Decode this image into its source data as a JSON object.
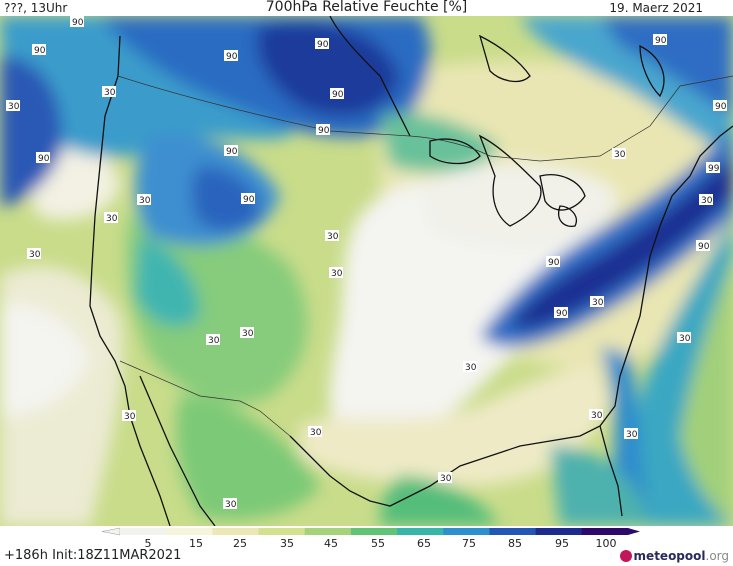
{
  "header": {
    "left": "???, 13Uhr",
    "title": "700hPa Relative Feuchte [%]",
    "date": "19. Maerz 2021"
  },
  "footer": {
    "run_info": "+186h Init:18Z11MAR2021",
    "logo_text_main": "meteopool",
    "logo_text_tld": ".org"
  },
  "colorbar": {
    "ticks": [
      "5",
      "15",
      "25",
      "35",
      "45",
      "55",
      "65",
      "75",
      "85",
      "95",
      "100"
    ],
    "colors": [
      "#f3f3ee",
      "#f7f4dc",
      "#ece8b6",
      "#d3e08e",
      "#a6d27a",
      "#63c374",
      "#37b5a8",
      "#2e8fcd",
      "#2456b6",
      "#1c2b8c",
      "#2d0a6a"
    ]
  },
  "contour_labels": {
    "humid": "90",
    "dry": "30",
    "peak": "99"
  }
}
